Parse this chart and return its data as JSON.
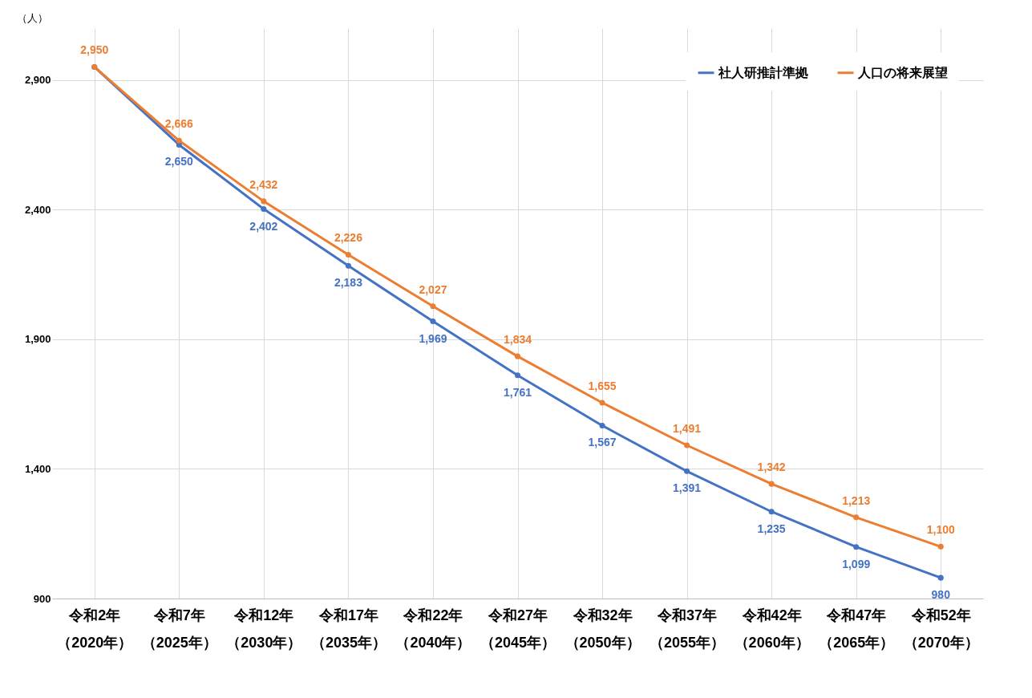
{
  "chart_data": {
    "type": "line",
    "ylabel": "（人）",
    "categories": [
      "令和2年（2020年）",
      "令和7年（2025年）",
      "令和12年（2030年）",
      "令和17年（2035年）",
      "令和22年（2040年）",
      "令和27年（2045年）",
      "令和32年（2050年）",
      "令和37年（2055年）",
      "令和42年（2060年）",
      "令和47年（2065年）",
      "令和52年（2070年）"
    ],
    "series": [
      {
        "name": "社人研推計準拠",
        "color": "#4472c4",
        "values": [
          2950,
          2650,
          2402,
          2183,
          1969,
          1761,
          1567,
          1391,
          1235,
          1099,
          980
        ],
        "value_labels": [
          null,
          "2,650",
          "2,402",
          "2,183",
          "1,969",
          "1,761",
          "1,567",
          "1,391",
          "1,235",
          "1,099",
          "980"
        ]
      },
      {
        "name": "人口の将来展望",
        "color": "#ed7d31",
        "values": [
          2950,
          2666,
          2432,
          2226,
          2027,
          1834,
          1655,
          1491,
          1342,
          1213,
          1100
        ],
        "value_labels": [
          "2,950",
          "2,666",
          "2,432",
          "2,226",
          "2,027",
          "1,834",
          "1,655",
          "1,491",
          "1,342",
          "1,213",
          "1,100"
        ]
      }
    ],
    "ylim": [
      900,
      3100
    ],
    "yticks": [
      900,
      {
        "value": 1400,
        "label": "1,400"
      },
      {
        "value": 1900,
        "label": "1,900"
      },
      {
        "value": 2400,
        "label": "2,400"
      },
      {
        "value": 2900,
        "label": "2,900"
      }
    ],
    "grid": true,
    "legend": "top right",
    "marker": "circle"
  }
}
